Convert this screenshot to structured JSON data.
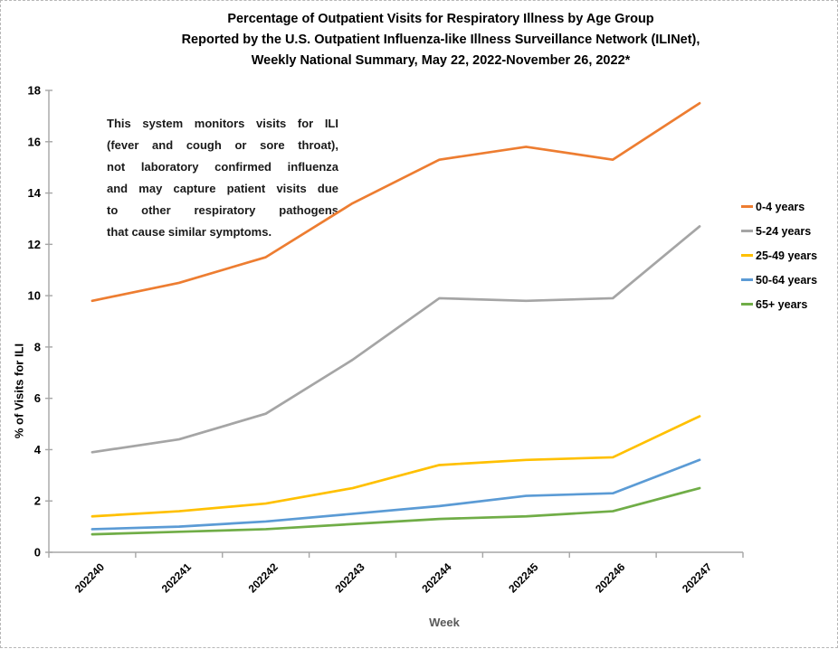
{
  "title": {
    "line1": "Percentage of Outpatient Visits for Respiratory Illness by Age Group",
    "line2": "Reported by the U.S. Outpatient Influenza-like Illness Surveillance Network (ILINet),",
    "line3": "Weekly National Summary, May 22, 2022-November 26, 2022*"
  },
  "annotation": {
    "lines": [
      "This system monitors visits for ILI",
      "(fever and cough or sore throat),",
      "not laboratory confirmed influenza",
      "and may capture patient visits due",
      "to other respiratory pathogens",
      "that cause similar symptoms."
    ]
  },
  "chart_data": {
    "type": "line",
    "title": "Percentage of Outpatient Visits for Respiratory Illness by Age Group Reported by the U.S. Outpatient Influenza-like Illness Surveillance Network (ILINet), Weekly National Summary, May 22, 2022-November 26, 2022*",
    "xlabel": "Week",
    "ylabel": "% of Visits for ILI",
    "ylim": [
      0,
      18
    ],
    "ytick_step": 2,
    "grid": false,
    "legend_position": "right",
    "categories": [
      "202240",
      "202241",
      "202242",
      "202243",
      "202244",
      "202245",
      "202246",
      "202247"
    ],
    "series": [
      {
        "name": "0-4 years",
        "color": "#ED7D31",
        "values": [
          9.8,
          10.5,
          11.5,
          13.6,
          15.3,
          15.8,
          15.3,
          17.5
        ]
      },
      {
        "name": "5-24 years",
        "color": "#A5A5A5",
        "values": [
          3.9,
          4.4,
          5.4,
          7.5,
          9.9,
          9.8,
          9.9,
          12.7
        ]
      },
      {
        "name": "25-49 years",
        "color": "#FFC000",
        "values": [
          1.4,
          1.6,
          1.9,
          2.5,
          3.4,
          3.6,
          3.7,
          5.3
        ]
      },
      {
        "name": "50-64 years",
        "color": "#5B9BD5",
        "values": [
          0.9,
          1.0,
          1.2,
          1.5,
          1.8,
          2.2,
          2.3,
          3.6
        ]
      },
      {
        "name": "65+ years",
        "color": "#70AD47",
        "values": [
          0.7,
          0.8,
          0.9,
          1.1,
          1.3,
          1.4,
          1.6,
          2.5
        ]
      }
    ]
  },
  "colors": {
    "axis": "#A6A6A6",
    "x_axis_title_text": "#595959",
    "tick_label_text": "#000000"
  }
}
